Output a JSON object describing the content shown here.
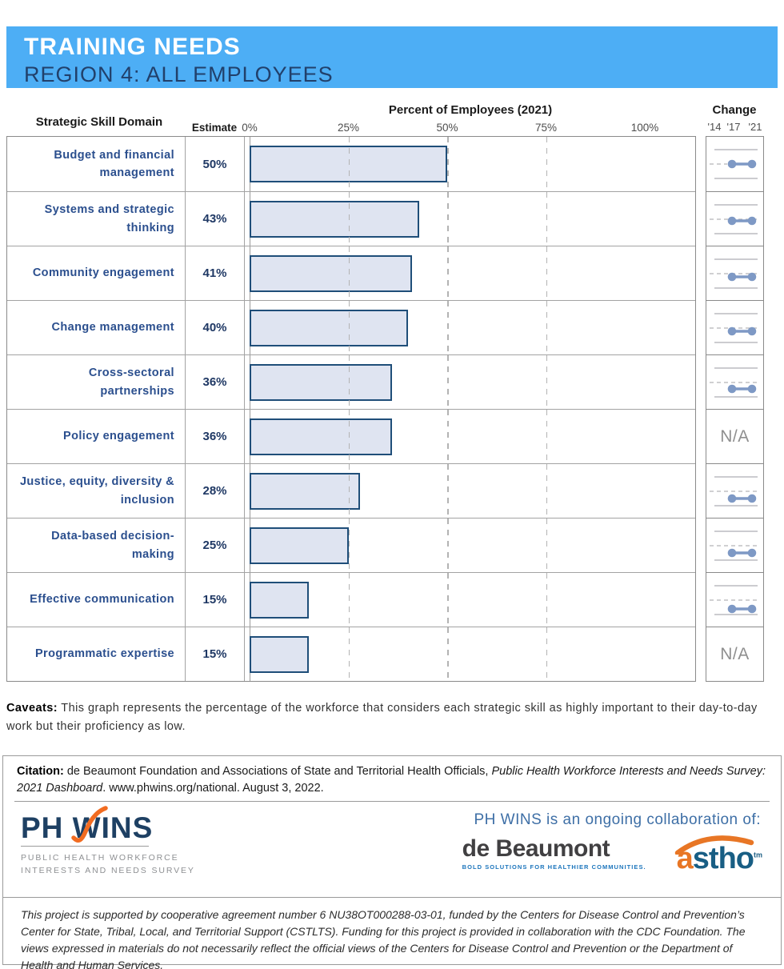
{
  "header": {
    "title": "TRAINING NEEDS",
    "subtitle": "REGION 4: ALL EMPLOYEES"
  },
  "table": {
    "col_domain": "Strategic Skill Domain",
    "col_estimate": "Estimate",
    "col_percent": "Percent of Employees (2021)",
    "col_change": "Change",
    "axis_ticks": [
      "0%",
      "25%",
      "50%",
      "75%",
      "100%"
    ]
  },
  "chart_data": {
    "type": "bar",
    "title": "Percent of Employees (2021)",
    "xlabel": "Percent of Employees (2021)",
    "ylabel": "Strategic Skill Domain",
    "xlim": [
      0,
      100
    ],
    "gridlines_pct": [
      25,
      50,
      75
    ],
    "grid": "dashed-vertical",
    "categories": [
      "Budget and financial management",
      "Systems and strategic thinking",
      "Community engagement",
      "Change management",
      "Cross-sectoral partnerships",
      "Policy engagement",
      "Justice, equity, diversity & inclusion",
      "Data-based decision-making",
      "Effective communication",
      "Programmatic expertise"
    ],
    "values": [
      50,
      43,
      41,
      40,
      36,
      36,
      28,
      25,
      15,
      15
    ],
    "estimate_labels": [
      "50%",
      "43%",
      "41%",
      "40%",
      "36%",
      "36%",
      "28%",
      "25%",
      "15%",
      "15%"
    ],
    "na_label": "N/A",
    "change_years": [
      "'14",
      "'17",
      "'21"
    ],
    "change": [
      {
        "available": true,
        "dash": "left",
        "offset": 0
      },
      {
        "available": true,
        "dash": "full",
        "offset": 2
      },
      {
        "available": true,
        "dash": "full",
        "offset": 4
      },
      {
        "available": true,
        "dash": "full",
        "offset": 4
      },
      {
        "available": true,
        "dash": "full",
        "offset": 8
      },
      {
        "available": false
      },
      {
        "available": true,
        "dash": "full",
        "offset": 9
      },
      {
        "available": true,
        "dash": "full",
        "offset": 9
      },
      {
        "available": true,
        "dash": "full",
        "offset": 11
      },
      {
        "available": false
      }
    ]
  },
  "caveats": {
    "label": "Caveats:",
    "text": " This graph represents the percentage of the workforce that considers each strategic skill as highly important to their day-to-day work but their proficiency as low."
  },
  "citation": {
    "label": "Citation:",
    "pre": " de Beaumont Foundation and Associations of State and Territorial Health Officials, ",
    "italic": "Public Health Workforce Interests and Needs Survey: 2021 Dashboard",
    "post": ". www.phwins.org/national. August 3, 2022."
  },
  "footer": {
    "phwins_logo": {
      "wordmark": "PH WINS",
      "tagline1": "PUBLIC HEALTH WORKFORCE",
      "tagline2": "INTERESTS AND NEEDS SURVEY"
    },
    "collab_text": "PH WINS is an ongoing collaboration of:",
    "debeaumont": {
      "name": "de Beaumont",
      "tagline": "BOLD SOLUTIONS FOR HEALTHIER COMMUNITIES."
    },
    "astho": {
      "first_letter": "a",
      "rest": "stho",
      "tm": "tm"
    },
    "disclaimer": "This project is supported by cooperative agreement number 6 NU38OT000288-03-01, funded by the Centers for Disease Control and Prevention’s Center for State, Tribal, Local, and Territorial Support (CSTLTS). Funding for this project is provided in collaboration with the CDC Foundation. The views expressed in materials do not necessarily reflect the official views of the Centers for Disease Control and Prevention or the Department of Health and Human Services."
  },
  "colors": {
    "banner_blue": "#4DAEF5",
    "banner_subtitle_navy": "#21406B",
    "row_label_blue": "#2B4F8E",
    "estimate_navy": "#1F3864",
    "bar_fill": "#DFE4F1",
    "bar_border": "#1F4E79",
    "gridline_gray": "#B3B3B3",
    "sparkline_blue": "#7E99C5",
    "na_gray": "#8F8F8F",
    "phwins_navy": "#1E4063",
    "phwins_orange": "#F26C21",
    "debeaumont_gray": "#414042",
    "debeaumont_tagline_blue": "#1C75BC",
    "astho_blue": "#185E84",
    "astho_orange": "#E87625",
    "collab_blue": "#3E6FA6"
  }
}
